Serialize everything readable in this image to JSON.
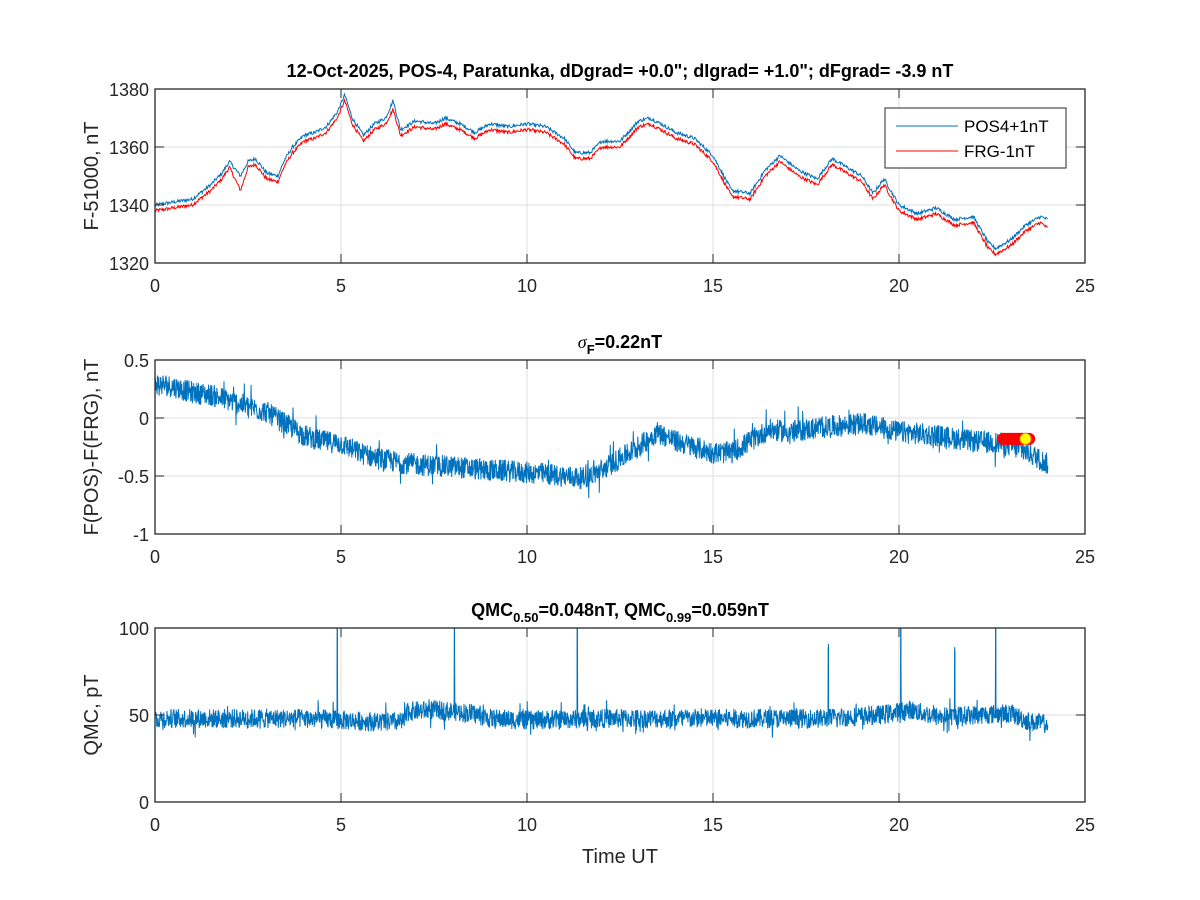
{
  "figure": {
    "background": "#ffffff",
    "axis_color": "#262626",
    "grid_color": "#dfdfdf",
    "series_colors": {
      "pos4": "#0072BD",
      "frg": "#FF0000",
      "diff": "#0072BD",
      "qmc": "#0072BD",
      "marker_bar": "#FF0000",
      "marker_dot": "#FFFF00"
    }
  },
  "chart_data": [
    {
      "id": "f-total",
      "type": "line",
      "title": "12-Oct-2025, POS-4, Paratunka, dDgrad=  +0.0\"; dIgrad=  +1.0\"; dFgrad= -3.9 nT",
      "xlabel": "",
      "ylabel": "F-51000, nT",
      "xlim": [
        0,
        25
      ],
      "ylim": [
        1320,
        1380
      ],
      "xticks": [
        0,
        5,
        10,
        15,
        20,
        25
      ],
      "xtick_labels": [
        "0",
        "5",
        "10",
        "15",
        "20",
        "25"
      ],
      "yticks": [
        1320,
        1340,
        1360,
        1380
      ],
      "ytick_labels": [
        "1320",
        "1340",
        "1360",
        "1380"
      ],
      "grid": true,
      "legend": {
        "placement": "top-right",
        "entries": [
          "POS4+1nT",
          "FRG-1nT"
        ]
      },
      "x": [
        0,
        0.5,
        1.0,
        1.5,
        1.8,
        2.0,
        2.3,
        2.5,
        2.7,
        3.0,
        3.3,
        3.5,
        3.7,
        4.0,
        4.3,
        4.6,
        4.9,
        5.1,
        5.3,
        5.6,
        5.9,
        6.2,
        6.4,
        6.6,
        7.0,
        7.5,
        7.8,
        8.2,
        8.6,
        9.0,
        9.5,
        10.0,
        10.5,
        11.0,
        11.3,
        11.7,
        12.0,
        12.5,
        13.0,
        13.3,
        13.6,
        14.0,
        14.5,
        15.0,
        15.5,
        16.0,
        16.4,
        16.8,
        17.3,
        17.8,
        18.2,
        18.6,
        19.0,
        19.3,
        19.6,
        20.0,
        20.5,
        21.0,
        21.5,
        22.0,
        22.4,
        22.6,
        23.0,
        23.4,
        23.8,
        24.0
      ],
      "series": [
        {
          "name": "POS4+1nT",
          "values": [
            1340,
            1341,
            1342,
            1347,
            1351,
            1355,
            1350,
            1355,
            1356,
            1351,
            1350,
            1356,
            1360,
            1364,
            1365,
            1367,
            1372,
            1378,
            1370,
            1364,
            1368,
            1370,
            1376,
            1366,
            1369,
            1368,
            1370,
            1368,
            1365,
            1368,
            1367,
            1368,
            1367,
            1363,
            1358,
            1358,
            1362,
            1362,
            1369,
            1370,
            1368,
            1365,
            1363,
            1357,
            1345,
            1344,
            1352,
            1357,
            1352,
            1349,
            1356,
            1353,
            1350,
            1344,
            1349,
            1340,
            1337,
            1339,
            1335,
            1336,
            1327,
            1325,
            1328,
            1333,
            1336,
            1335
          ]
        },
        {
          "name": "FRG-1nT",
          "values": [
            1338,
            1339,
            1340,
            1345,
            1349,
            1353,
            1345,
            1353,
            1354,
            1349,
            1348,
            1354,
            1358,
            1362,
            1363,
            1365,
            1370,
            1376,
            1368,
            1362,
            1366,
            1368,
            1373,
            1364,
            1367,
            1366,
            1368,
            1366,
            1363,
            1366,
            1365,
            1366,
            1365,
            1361,
            1356,
            1356,
            1360,
            1360,
            1367,
            1368,
            1366,
            1363,
            1361,
            1355,
            1343,
            1342,
            1350,
            1355,
            1350,
            1347,
            1354,
            1351,
            1348,
            1342,
            1347,
            1338,
            1335,
            1337,
            1333,
            1334,
            1325,
            1323,
            1326,
            1331,
            1334,
            1332
          ]
        }
      ]
    },
    {
      "id": "f-diff",
      "type": "line",
      "title": "σF=0.22nT",
      "title_parts": {
        "sigma": "σ",
        "sub": "F",
        "rest": "=0.22nT"
      },
      "xlabel": "",
      "ylabel": "F(POS)-F(FRG), nT",
      "xlim": [
        0,
        25
      ],
      "ylim": [
        -1,
        0.5
      ],
      "xticks": [
        0,
        5,
        10,
        15,
        20,
        25
      ],
      "xtick_labels": [
        "0",
        "5",
        "10",
        "15",
        "20",
        "25"
      ],
      "yticks": [
        -1,
        -0.5,
        0,
        0.5
      ],
      "ytick_labels": [
        "-1",
        "-0.5",
        "0",
        "0.5"
      ],
      "grid": true,
      "noise_amplitude": 0.06,
      "x": [
        0,
        0.5,
        1.0,
        1.5,
        2.0,
        2.5,
        3.0,
        3.5,
        4.0,
        4.5,
        5.0,
        5.5,
        6.0,
        6.5,
        7.0,
        8.0,
        9.0,
        10.0,
        11.0,
        11.5,
        12.0,
        12.5,
        13.0,
        13.5,
        14.0,
        14.5,
        15.0,
        15.5,
        16.0,
        16.5,
        17.0,
        18.0,
        19.0,
        19.5,
        20.0,
        21.0,
        22.0,
        22.8,
        23.5,
        24.0
      ],
      "series": [
        {
          "name": "F(POS)-F(FRG)",
          "values": [
            0.3,
            0.27,
            0.22,
            0.2,
            0.15,
            0.1,
            0.05,
            -0.05,
            -0.15,
            -0.2,
            -0.22,
            -0.3,
            -0.35,
            -0.38,
            -0.4,
            -0.42,
            -0.45,
            -0.47,
            -0.5,
            -0.52,
            -0.45,
            -0.35,
            -0.25,
            -0.12,
            -0.2,
            -0.25,
            -0.3,
            -0.3,
            -0.2,
            -0.1,
            -0.12,
            -0.08,
            -0.05,
            -0.08,
            -0.12,
            -0.15,
            -0.2,
            -0.22,
            -0.3,
            -0.4
          ]
        }
      ],
      "markers": [
        {
          "type": "bar",
          "x_start": 22.8,
          "x_end": 23.5,
          "y": -0.18
        },
        {
          "type": "dot",
          "x": 23.4,
          "y": -0.18
        }
      ]
    },
    {
      "id": "qmc",
      "type": "line",
      "title": "QMC0.50=0.048nT, QMC0.99=0.059nT",
      "title_parts": {
        "a": "QMC",
        "a_sub": "0.50",
        "b": "=0.048nT, QMC",
        "b_sub": "0.99",
        "c": "=0.059nT"
      },
      "xlabel": "Time UT",
      "ylabel": "QMC, pT",
      "xlim": [
        0,
        25
      ],
      "ylim": [
        0,
        100
      ],
      "xticks": [
        0,
        5,
        10,
        15,
        20,
        25
      ],
      "xtick_labels": [
        "0",
        "5",
        "10",
        "15",
        "20",
        "25"
      ],
      "yticks": [
        0,
        50,
        100
      ],
      "ytick_labels": [
        "0",
        "50",
        "100"
      ],
      "grid": true,
      "noise_amplitude": 4,
      "x": [
        0,
        2,
        4,
        5,
        6,
        6.7,
        6.8,
        7.5,
        8.5,
        9.0,
        10,
        12,
        14,
        16,
        18,
        19.5,
        20.3,
        21,
        22,
        23,
        23.5,
        24
      ],
      "series": [
        {
          "name": "QMC",
          "values": [
            48,
            48,
            48,
            47,
            46,
            46,
            52,
            53,
            51,
            48,
            47,
            48,
            48,
            48,
            48,
            50,
            53,
            49,
            50,
            51,
            46,
            45
          ]
        }
      ],
      "spikes": [
        {
          "x": 4.9,
          "value": 100
        },
        {
          "x": 8.05,
          "value": 100
        },
        {
          "x": 11.35,
          "value": 100
        },
        {
          "x": 18.1,
          "value": 89
        },
        {
          "x": 20.05,
          "value": 100
        },
        {
          "x": 21.5,
          "value": 87
        },
        {
          "x": 22.6,
          "value": 100
        }
      ]
    }
  ]
}
